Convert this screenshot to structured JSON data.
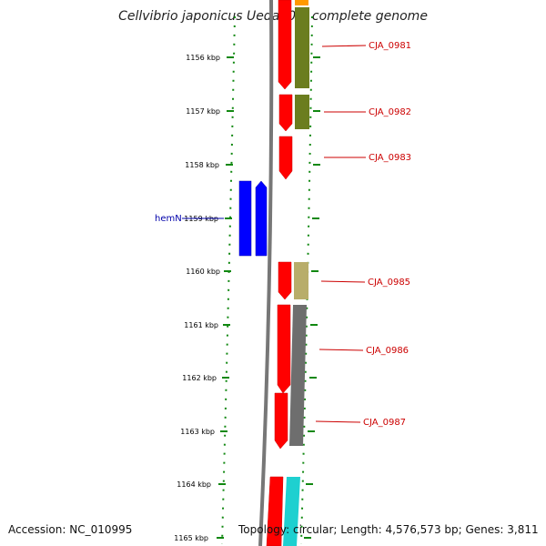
{
  "title": "Cellvibrio japonicus Ueda107, complete genome",
  "footer": {
    "accession": "Accession: NC_010995",
    "summary": "Topology: circular; Length: 4,576,573 bp; Genes: 3,811"
  },
  "axis": {
    "ticks": [
      "1156 kbp",
      "1157 kbp",
      "1158 kbp",
      "1159 kbp",
      "1160 kbp",
      "1161 kbp",
      "1162 kbp",
      "1163 kbp",
      "1164 kbp",
      "1165 kbp"
    ]
  },
  "genes": [
    {
      "name": "CJA_0981",
      "color": "#cc0000"
    },
    {
      "name": "CJA_0982",
      "color": "#cc0000"
    },
    {
      "name": "CJA_0983",
      "color": "#cc0000"
    },
    {
      "name": "hemN",
      "color": "#0000aa"
    },
    {
      "name": "CJA_0985",
      "color": "#cc0000"
    },
    {
      "name": "CJA_0986",
      "color": "#cc0000"
    },
    {
      "name": "CJA_0987",
      "color": "#cc0000"
    }
  ],
  "colors": {
    "cds_forward": "#ff0000",
    "hemN_cds": "#0000ff",
    "cog_olive": "#6b7d1f",
    "cog_khaki": "#b8ad6a",
    "cog_gray": "#6e6e6e",
    "cog_cyan": "#1ed0d0",
    "cog_orange": "#ff9900",
    "backbone": "#777777",
    "tick_green": "#118811"
  }
}
